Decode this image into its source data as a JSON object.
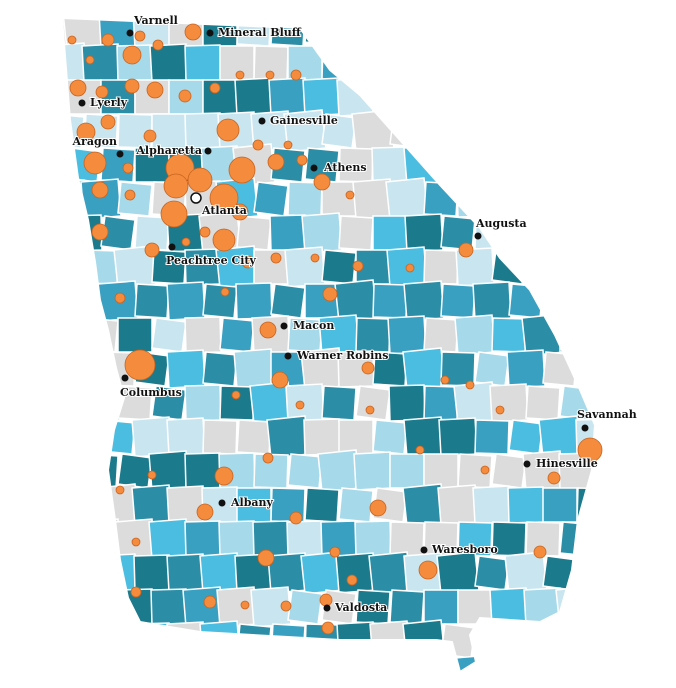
{
  "cities": [
    "Varnell",
    "Mineral Bluff",
    "Lyerly",
    "Gainesville",
    "Aragon",
    "Alpharetta",
    "Athens",
    "Atlanta",
    "Augusta",
    "Peachtree City",
    "Macon",
    "Warner Robins",
    "Columbus",
    "Savannah",
    "Hinesville",
    "Albany",
    "Waresboro",
    "Valdosta"
  ]
}
